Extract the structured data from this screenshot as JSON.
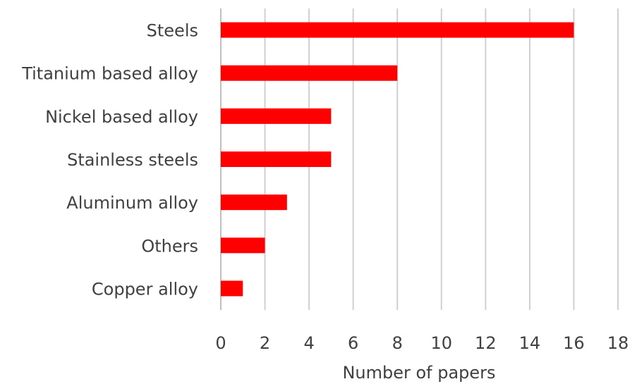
{
  "chart_data": {
    "type": "bar",
    "orientation": "horizontal",
    "title": "",
    "xlabel": "Number of papers",
    "ylabel": "",
    "categories": [
      "Steels",
      "Titanium based alloy",
      "Nickel based alloy",
      "Stainless steels",
      "Aluminum alloy",
      "Others",
      "Copper alloy"
    ],
    "values": [
      16,
      8,
      5,
      5,
      3,
      2,
      1
    ],
    "xlim": [
      0,
      18
    ],
    "xticks": [
      "0",
      "2",
      "4",
      "6",
      "8",
      "10",
      "12",
      "14",
      "16",
      "18"
    ],
    "grid": "vertical",
    "legend": "none",
    "bar_color": "#ff0000",
    "gridline_color": "#d0d0d0",
    "text_color": "#404040"
  }
}
